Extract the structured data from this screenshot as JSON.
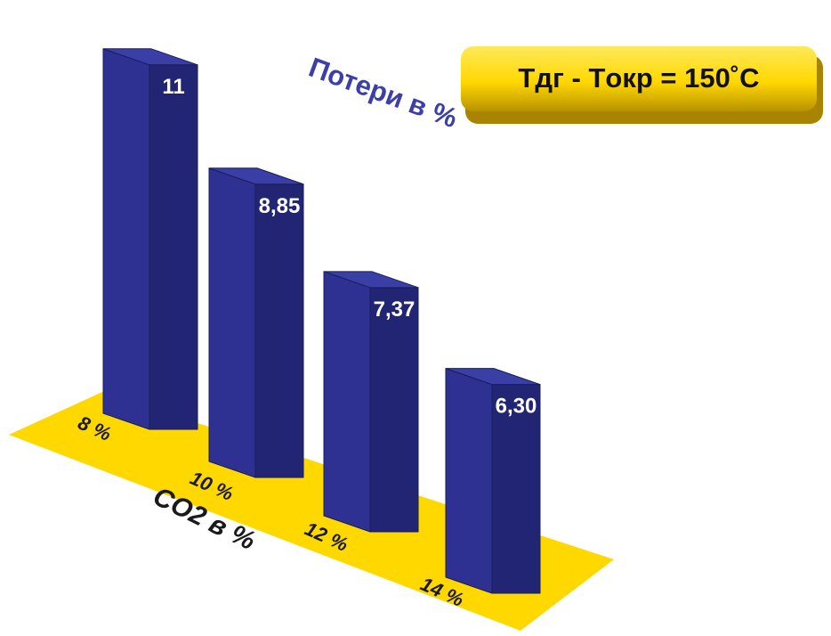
{
  "chart_data": {
    "type": "bar",
    "title": "Потери в %",
    "xlabel": "CO2 в %",
    "categories": [
      "8 %",
      "10 %",
      "12 %",
      "14 %"
    ],
    "values": [
      11,
      8.85,
      7.37,
      6.3
    ],
    "value_labels": [
      "11",
      "8,85",
      "7,37",
      "6,30"
    ],
    "grid": false,
    "legend": "none"
  },
  "annotation": "Tдг - Tокр = 150˚C",
  "colors": {
    "bar_front": "#2e3192",
    "bar_side": "#222574",
    "bar_top": "#3a3fa6",
    "floor": "#ffd800",
    "badge": "#ffd800"
  }
}
